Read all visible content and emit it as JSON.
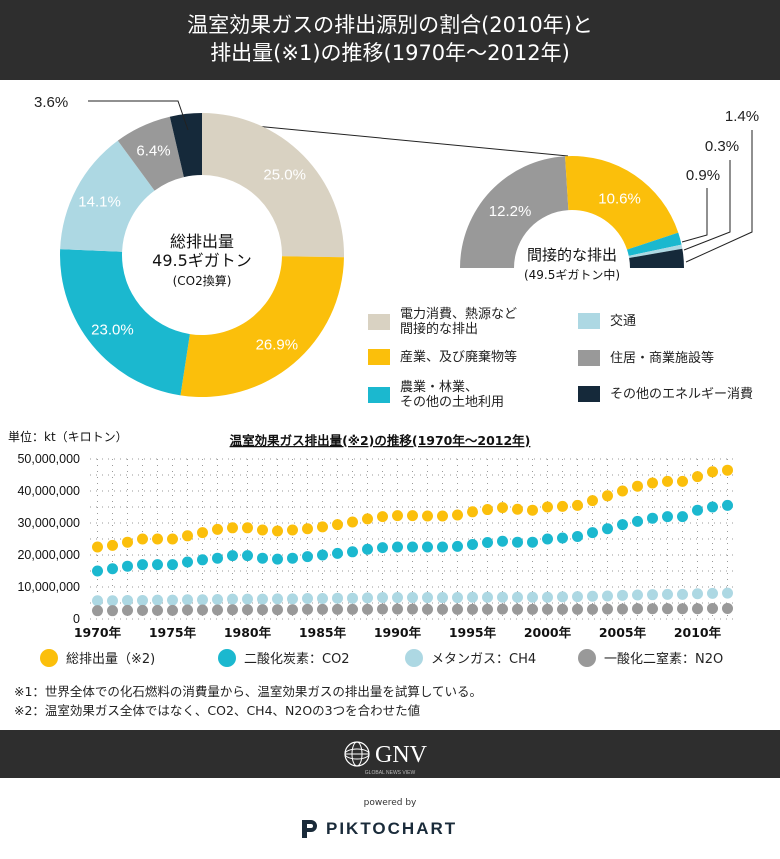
{
  "header": {
    "title_line1": "温室効果ガスの排出源別の割合(2010年)と",
    "title_line2": "排出量(※1)の推移(1970年〜2012年)"
  },
  "colors": {
    "beige": "#d9d2c2",
    "yellow": "#fbbf0b",
    "cyan": "#1bb8cf",
    "lightblue": "#add8e3",
    "gray": "#999999",
    "navy": "#15293a"
  },
  "chart_data": [
    {
      "type": "pie",
      "style": "donut",
      "center_label": [
        "総排出量",
        "49.5ギガトン",
        "(CO2換算)"
      ],
      "slices": [
        {
          "label": "電力消費、熱源など間接的な排出",
          "value": 25.0,
          "text": "25.0%",
          "color": "#d9d2c2"
        },
        {
          "label": "産業、及び廃棄物等",
          "value": 26.9,
          "text": "26.9%",
          "color": "#fbbf0b"
        },
        {
          "label": "農業・林業、その他の土地利用",
          "value": 23.0,
          "text": "23.0%",
          "color": "#1bb8cf"
        },
        {
          "label": "交通",
          "value": 14.1,
          "text": "14.1%",
          "color": "#add8e3"
        },
        {
          "label": "住居・商業施設等",
          "value": 6.4,
          "text": "6.4%",
          "color": "#999999"
        },
        {
          "label": "その他のエネルギー消費",
          "value": 3.6,
          "text": "3.6%",
          "color": "#15293a"
        }
      ]
    },
    {
      "type": "pie",
      "style": "half-donut",
      "center_label": [
        "間接的な排出",
        "(49.5ギガトン中)"
      ],
      "slices": [
        {
          "label": "住居・商業施設等",
          "value": 12.2,
          "text": "12.2%",
          "color": "#999999"
        },
        {
          "label": "産業、及び廃棄物等",
          "value": 10.6,
          "text": "10.6%",
          "color": "#fbbf0b"
        },
        {
          "label": "農業・林業、その他の土地利用",
          "value": 0.9,
          "text": "0.9%",
          "color": "#1bb8cf"
        },
        {
          "label": "交通",
          "value": 0.3,
          "text": "0.3%",
          "color": "#add8e3"
        },
        {
          "label": "その他のエネルギー消費",
          "value": 1.4,
          "text": "1.4%",
          "color": "#15293a"
        }
      ]
    },
    {
      "type": "scatter",
      "title": "温室効果ガス排出量(※2)の推移(1970年〜2012年)",
      "ylabel": "単位：kt（キロトン）",
      "ylim": [
        0,
        50000000
      ],
      "yticks": [
        "0",
        "10,000,000",
        "20,000,000",
        "30,000,000",
        "40,000,000",
        "50,000,000"
      ],
      "xticks": [
        "1970年",
        "1975年",
        "1980年",
        "1985年",
        "1990年",
        "1995年",
        "2000年",
        "2005年",
        "2010年"
      ],
      "x": [
        1970,
        1971,
        1972,
        1973,
        1974,
        1975,
        1976,
        1977,
        1978,
        1979,
        1980,
        1981,
        1982,
        1983,
        1984,
        1985,
        1986,
        1987,
        1988,
        1989,
        1990,
        1991,
        1992,
        1993,
        1994,
        1995,
        1996,
        1997,
        1998,
        1999,
        2000,
        2001,
        2002,
        2003,
        2004,
        2005,
        2006,
        2007,
        2008,
        2009,
        2010,
        2011,
        2012
      ],
      "series": [
        {
          "name": "総排出量（※2)",
          "color": "#fbbf0b",
          "values": [
            22500000,
            23000000,
            24000000,
            25000000,
            25000000,
            25000000,
            26000000,
            27000000,
            28000000,
            28500000,
            28500000,
            27800000,
            27500000,
            27800000,
            28200000,
            28800000,
            29500000,
            30300000,
            31300000,
            32000000,
            32300000,
            32300000,
            32200000,
            32200000,
            32500000,
            33500000,
            34200000,
            34800000,
            34300000,
            34000000,
            35000000,
            35200000,
            35500000,
            37000000,
            38500000,
            40000000,
            41500000,
            42500000,
            43000000,
            43000000,
            44500000,
            46000000,
            46500000
          ]
        },
        {
          "name": "二酸化炭素：CO2",
          "color": "#1bb8cf",
          "values": [
            15000000,
            15700000,
            16500000,
            17000000,
            17000000,
            17000000,
            17800000,
            18500000,
            19000000,
            19800000,
            19800000,
            19000000,
            18700000,
            19000000,
            19500000,
            20000000,
            20500000,
            21000000,
            21800000,
            22300000,
            22500000,
            22500000,
            22500000,
            22500000,
            22700000,
            23300000,
            23900000,
            24300000,
            24000000,
            24000000,
            25000000,
            25300000,
            25800000,
            27000000,
            28200000,
            29500000,
            30500000,
            31500000,
            32000000,
            32000000,
            34000000,
            35000000,
            35500000
          ]
        },
        {
          "name": "メタンガス：CH4",
          "color": "#add8e3",
          "values": [
            5700000,
            5700000,
            5800000,
            5800000,
            5900000,
            5900000,
            6000000,
            6000000,
            6100000,
            6200000,
            6200000,
            6200000,
            6300000,
            6300000,
            6400000,
            6400000,
            6500000,
            6500000,
            6600000,
            6700000,
            6700000,
            6700000,
            6700000,
            6700000,
            6700000,
            6800000,
            6800000,
            6800000,
            6800000,
            6800000,
            6800000,
            6900000,
            7000000,
            7100000,
            7200000,
            7400000,
            7500000,
            7600000,
            7700000,
            7700000,
            7900000,
            8000000,
            8100000
          ]
        },
        {
          "name": "一酸化二窒素：N2O",
          "color": "#999999",
          "values": [
            2600000,
            2600000,
            2700000,
            2700000,
            2700000,
            2700000,
            2800000,
            2800000,
            2800000,
            2900000,
            2900000,
            2900000,
            2900000,
            2900000,
            3000000,
            3000000,
            3000000,
            3000000,
            3000000,
            3100000,
            3100000,
            3100000,
            3000000,
            3000000,
            3000000,
            3000000,
            3000000,
            3100000,
            3000000,
            3000000,
            3000000,
            3000000,
            3000000,
            3000000,
            3100000,
            3100000,
            3200000,
            3200000,
            3200000,
            3200000,
            3200000,
            3300000,
            3300000
          ]
        }
      ]
    }
  ],
  "legend": {
    "items": [
      {
        "label": "電力消費、熱源など\n間接的な排出",
        "color": "#d9d2c2"
      },
      {
        "label": "交通",
        "color": "#add8e3"
      },
      {
        "label": "産業、及び廃棄物等",
        "color": "#fbbf0b"
      },
      {
        "label": "住居・商業施設等",
        "color": "#999999"
      },
      {
        "label": "農業・林業、\nその他の土地利用",
        "color": "#1bb8cf"
      },
      {
        "label": "その他のエネルギー消費",
        "color": "#15293a"
      }
    ]
  },
  "notes": {
    "note1": "※1：世界全体での化石燃料の消費量から、温室効果ガスの排出量を試算している。",
    "note2": "※2：温室効果ガス全体ではなく、CO2、CH4、N2Oの3つを合わせた値"
  },
  "footer": {
    "logo_text": "GNV",
    "logo_subtext": "GLOBAL NEWS VIEW",
    "powered_by": "powered by",
    "brand": "PIKTOCHART"
  }
}
